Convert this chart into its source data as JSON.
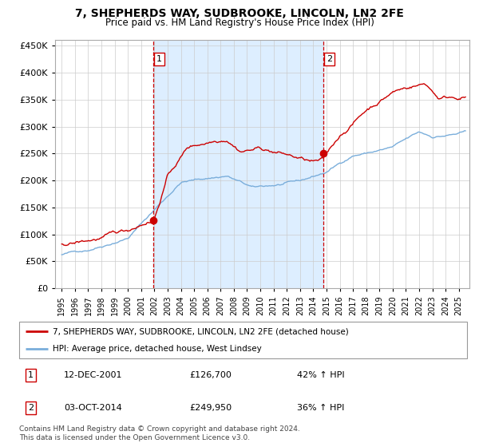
{
  "title": "7, SHEPHERDS WAY, SUDBROOKE, LINCOLN, LN2 2FE",
  "subtitle": "Price paid vs. HM Land Registry's House Price Index (HPI)",
  "legend_line1": "7, SHEPHERDS WAY, SUDBROOKE, LINCOLN, LN2 2FE (detached house)",
  "legend_line2": "HPI: Average price, detached house, West Lindsey",
  "sale1_label": "1",
  "sale1_date": "12-DEC-2001",
  "sale1_price": "£126,700",
  "sale1_hpi": "42% ↑ HPI",
  "sale2_label": "2",
  "sale2_date": "03-OCT-2014",
  "sale2_price": "£249,950",
  "sale2_hpi": "36% ↑ HPI",
  "footer": "Contains HM Land Registry data © Crown copyright and database right 2024.\nThis data is licensed under the Open Government Licence v3.0.",
  "red_color": "#cc0000",
  "blue_color": "#7aaedb",
  "bg_color": "#ddeeff",
  "sale1_x": 2001.92,
  "sale2_x": 2014.75,
  "ylim": [
    0,
    460000
  ],
  "xlim_start": 1994.5,
  "xlim_end": 2025.8
}
